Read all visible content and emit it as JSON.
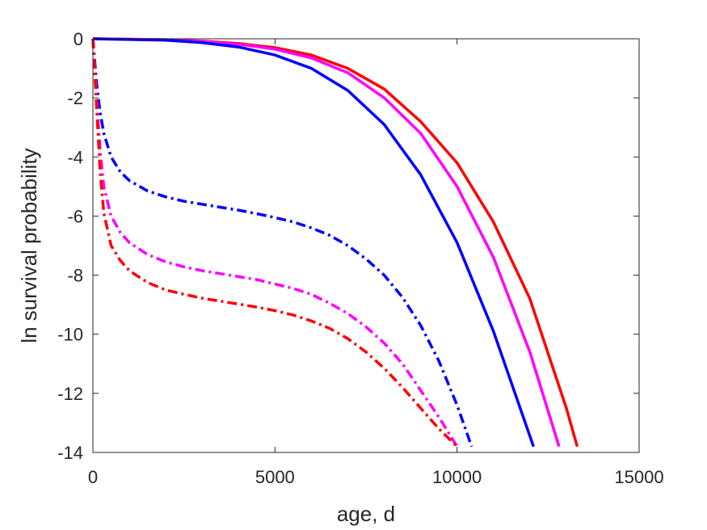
{
  "chart_data": {
    "type": "line",
    "title": "",
    "xlabel": "age, d",
    "ylabel": "ln survival probability",
    "xlim": [
      0,
      15000
    ],
    "ylim": [
      -14,
      0
    ],
    "xticks": [
      0,
      5000,
      10000,
      15000
    ],
    "xtick_labels": [
      "0",
      "5000",
      "10000",
      "15000"
    ],
    "yticks": [
      0,
      -2,
      -4,
      -6,
      -8,
      -10,
      -12,
      -14
    ],
    "ytick_labels": [
      "0",
      "-2",
      "-4",
      "-6",
      "-8",
      "-10",
      "-12",
      "-14"
    ],
    "grid": false,
    "legend": "none",
    "series": [
      {
        "color": "#ff0000",
        "style": "solid",
        "x": [
          0,
          2000,
          3000,
          4000,
          5000,
          6000,
          7000,
          8000,
          9000,
          10000,
          11000,
          12000,
          13000,
          13300
        ],
        "y": [
          0,
          -0.03,
          -0.08,
          -0.16,
          -0.3,
          -0.55,
          -1.0,
          -1.7,
          -2.8,
          -4.2,
          -6.2,
          -8.8,
          -12.5,
          -13.8
        ]
      },
      {
        "color": "#ff00ff",
        "style": "solid",
        "x": [
          0,
          2000,
          3000,
          4000,
          5000,
          6000,
          7000,
          8000,
          9000,
          10000,
          11000,
          12000,
          12800
        ],
        "y": [
          0,
          -0.03,
          -0.09,
          -0.18,
          -0.35,
          -0.65,
          -1.15,
          -2.0,
          -3.2,
          -5.0,
          -7.4,
          -10.6,
          -13.8
        ]
      },
      {
        "color": "#0000ff",
        "style": "solid",
        "x": [
          0,
          2000,
          3000,
          4000,
          5000,
          6000,
          7000,
          8000,
          9000,
          10000,
          11000,
          12100
        ],
        "y": [
          0,
          -0.05,
          -0.13,
          -0.28,
          -0.55,
          -1.0,
          -1.75,
          -2.9,
          -4.6,
          -6.9,
          -9.9,
          -13.8
        ]
      },
      {
        "color": "#0000ff",
        "style": "dashdot",
        "x": [
          0,
          100,
          200,
          300,
          500,
          750,
          1000,
          1500,
          2000,
          2500,
          3000,
          3500,
          4000,
          4500,
          5000,
          5500,
          6000,
          6500,
          7000,
          7500,
          8000,
          8500,
          9000,
          9500,
          10000,
          10400
        ],
        "y": [
          0,
          -1.5,
          -2.5,
          -3.2,
          -4.0,
          -4.5,
          -4.8,
          -5.15,
          -5.35,
          -5.5,
          -5.6,
          -5.7,
          -5.8,
          -5.92,
          -6.05,
          -6.2,
          -6.4,
          -6.65,
          -7.0,
          -7.45,
          -8.0,
          -8.75,
          -9.7,
          -10.9,
          -12.4,
          -13.8
        ]
      },
      {
        "color": "#ff00ff",
        "style": "dashdot",
        "x": [
          0,
          100,
          200,
          300,
          500,
          750,
          1000,
          1500,
          2000,
          2500,
          3000,
          3500,
          4000,
          4500,
          5000,
          5500,
          6000,
          6500,
          7000,
          7500,
          8000,
          8500,
          9000,
          9500,
          10000
        ],
        "y": [
          0,
          -2.0,
          -3.8,
          -5.0,
          -6.0,
          -6.55,
          -6.9,
          -7.3,
          -7.55,
          -7.72,
          -7.85,
          -7.95,
          -8.05,
          -8.15,
          -8.3,
          -8.45,
          -8.65,
          -8.95,
          -9.3,
          -9.75,
          -10.3,
          -11.0,
          -11.9,
          -12.8,
          -13.8
        ]
      },
      {
        "color": "#ff0000",
        "style": "dashdot",
        "x": [
          0,
          100,
          200,
          300,
          500,
          750,
          1000,
          1500,
          2000,
          2500,
          3000,
          3500,
          4000,
          4500,
          5000,
          5500,
          6000,
          6500,
          7000,
          7500,
          8000,
          8500,
          9000,
          9500,
          10000
        ],
        "y": [
          0,
          -2.3,
          -4.5,
          -5.9,
          -7.0,
          -7.5,
          -7.85,
          -8.25,
          -8.5,
          -8.65,
          -8.78,
          -8.88,
          -8.98,
          -9.08,
          -9.2,
          -9.35,
          -9.55,
          -9.8,
          -10.15,
          -10.6,
          -11.15,
          -11.8,
          -12.5,
          -13.2,
          -13.8
        ]
      }
    ]
  }
}
